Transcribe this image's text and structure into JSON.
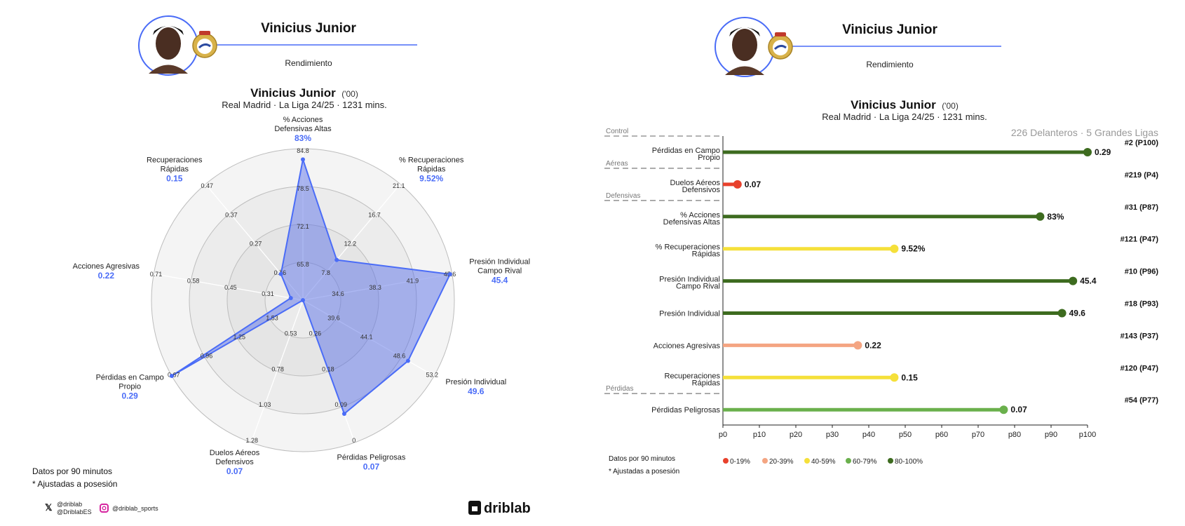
{
  "left": {
    "header": {
      "title": "Vinicius Junior",
      "subtitle": "Rendimiento"
    },
    "player": {
      "name": "Vinicius Junior",
      "birth": "('00)",
      "info": "Real Madrid · La Liga 24/25 · 1231 mins."
    },
    "footnotes": [
      "Datos por 90 minutos",
      "* Ajustadas a posesión"
    ],
    "social": {
      "x_handles": [
        "@driblab",
        "@DriblabES"
      ],
      "instagram": "@driblab_sports"
    },
    "logo": "driblab"
  },
  "right": {
    "header": {
      "title": "Vinicius Junior",
      "subtitle": "Rendimiento"
    },
    "player": {
      "name": "Vinicius Junior",
      "birth": "('00)",
      "info": "Real Madrid · La Liga 24/25 · 1231 mins."
    },
    "comparison": "226 Delanteros · 5 Grandes Ligas",
    "footnotes": [
      "Datos por 90 minutos",
      "* Ajustadas a posesión"
    ],
    "legend": [
      {
        "label": "0-19%",
        "color": "#e8412c"
      },
      {
        "label": "20-39%",
        "color": "#f4a582"
      },
      {
        "label": "40-59%",
        "color": "#f5e03a"
      },
      {
        "label": "60-79%",
        "color": "#6ab04c"
      },
      {
        "label": "80-100%",
        "color": "#3d6b1f"
      }
    ]
  },
  "colors": {
    "accent": "#4a6cf7",
    "radar_fill": "#5b72e8"
  },
  "chart_data": [
    {
      "type": "radar",
      "axes": [
        {
          "label": [
            "% Acciones",
            "Defensivas Altas"
          ],
          "value": 83,
          "value_label": "83%",
          "ticks": [
            "65.8",
            "72.1",
            "78.5",
            "84.8"
          ]
        },
        {
          "label": [
            "% Recuperaciones",
            "Rápidas"
          ],
          "value": 9.52,
          "value_label": "9.52%",
          "ticks": [
            "7.8",
            "12.2",
            "16.7",
            "21.1"
          ]
        },
        {
          "label": [
            "Presión Individual",
            "Campo Rival"
          ],
          "value": 45.4,
          "value_label": "45.4",
          "ticks": [
            "34.6",
            "38.3",
            "41.9",
            "45.6"
          ]
        },
        {
          "label": [
            "Presión Individual"
          ],
          "value": 49.6,
          "value_label": "49.6",
          "ticks": [
            "39.6",
            "44.1",
            "48.6",
            "53.2"
          ]
        },
        {
          "label": [
            "Pérdidas Peligrosas"
          ],
          "value": 0.07,
          "value_label": "0.07",
          "ticks": [
            "0.26",
            "0.18",
            "0.09",
            "0"
          ]
        },
        {
          "label": [
            "Duelos Aéreos",
            "Defensivos"
          ],
          "value": 0.07,
          "value_label": "0.07",
          "ticks": [
            "0.53",
            "0.78",
            "1.03",
            "1.28"
          ]
        },
        {
          "label": [
            "Pérdidas en Campo",
            "Propio"
          ],
          "value": 0.29,
          "value_label": "0.29",
          "ticks": [
            "1.53",
            "1.25",
            "0.96",
            "0.67"
          ]
        },
        {
          "label": [
            "Acciones Agresivas"
          ],
          "value": 0.22,
          "value_label": "0.22",
          "ticks": [
            "0.31",
            "0.45",
            "0.58",
            "0.71"
          ]
        },
        {
          "label": [
            "Recuperaciones",
            "Rápidas"
          ],
          "value": 0.15,
          "value_label": "0.15",
          "ticks": [
            "0.16",
            "0.27",
            "0.37",
            "0.47"
          ]
        }
      ]
    },
    {
      "type": "bar",
      "orientation": "horizontal-lollipop",
      "xlim": [
        0,
        100
      ],
      "xticks": [
        "p0",
        "p10",
        "p20",
        "p30",
        "p40",
        "p50",
        "p60",
        "p70",
        "p80",
        "p90",
        "p100"
      ],
      "rows": [
        {
          "group": "Control",
          "label": [
            "Pérdidas en Campo",
            "Propio"
          ],
          "percentile": 100,
          "value_label": "0.29",
          "rank": "#2 (P100)"
        },
        {
          "group": "Aéreas",
          "label": [
            "Duelos Aéreos",
            "Defensivos"
          ],
          "percentile": 4,
          "value_label": "0.07",
          "rank": "#219 (P4)"
        },
        {
          "group": "Defensivas",
          "label": [
            "% Acciones",
            "Defensivas Altas"
          ],
          "percentile": 87,
          "value_label": "83%",
          "rank": "#31 (P87)"
        },
        {
          "label": [
            "% Recuperaciones",
            "Rápidas"
          ],
          "percentile": 47,
          "value_label": "9.52%",
          "rank": "#121 (P47)"
        },
        {
          "label": [
            "Presión Individual",
            "Campo Rival"
          ],
          "percentile": 96,
          "value_label": "45.4",
          "rank": "#10 (P96)"
        },
        {
          "label": [
            "Presión Individual"
          ],
          "percentile": 93,
          "value_label": "49.6",
          "rank": "#18 (P93)"
        },
        {
          "label": [
            "Acciones Agresivas"
          ],
          "percentile": 37,
          "value_label": "0.22",
          "rank": "#143 (P37)"
        },
        {
          "label": [
            "Recuperaciones",
            "Rápidas"
          ],
          "percentile": 47,
          "value_label": "0.15",
          "rank": "#120 (P47)"
        },
        {
          "group": "Pérdidas",
          "label": [
            "Pérdidas Peligrosas"
          ],
          "percentile": 77,
          "value_label": "0.07",
          "rank": "#54 (P77)"
        }
      ]
    }
  ]
}
